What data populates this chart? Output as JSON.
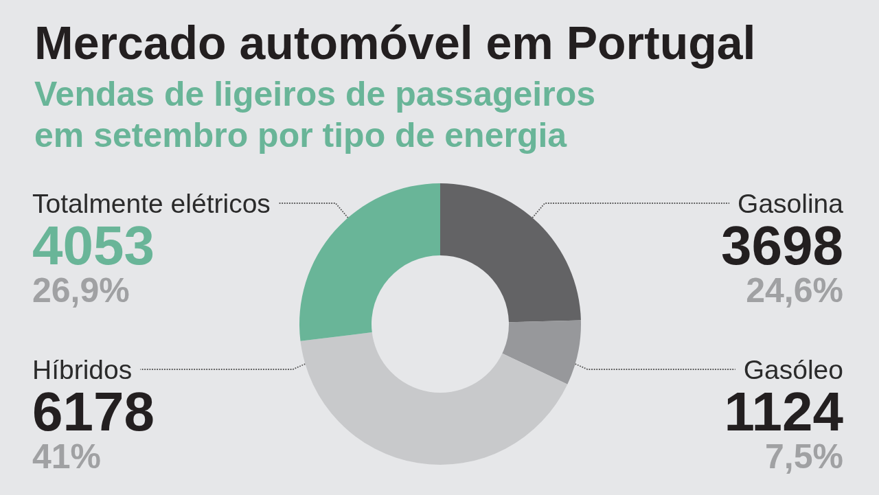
{
  "chart_data": {
    "type": "donut",
    "title": "Mercado automóvel em Portugal",
    "subtitle": "Vendas de ligeiros de passageiros em setembro por tipo de energia",
    "categories": [
      "Gasolina",
      "Gasóleo",
      "Híbridos",
      "Totalmente elétricos"
    ],
    "values": [
      3698,
      1124,
      6178,
      4053
    ],
    "colors": [
      "#636365",
      "#97989b",
      "#c8c9cb",
      "#69b598"
    ],
    "data_labels": true,
    "annotations": [
      {
        "text": "24,6%",
        "x": "Gasolina"
      },
      {
        "text": "7,5%",
        "x": "Gasóleo"
      },
      {
        "text": "41%",
        "x": "Híbridos"
      },
      {
        "text": "26,9%",
        "x": "Totalmente elétricos"
      }
    ],
    "legend": false
  }
}
